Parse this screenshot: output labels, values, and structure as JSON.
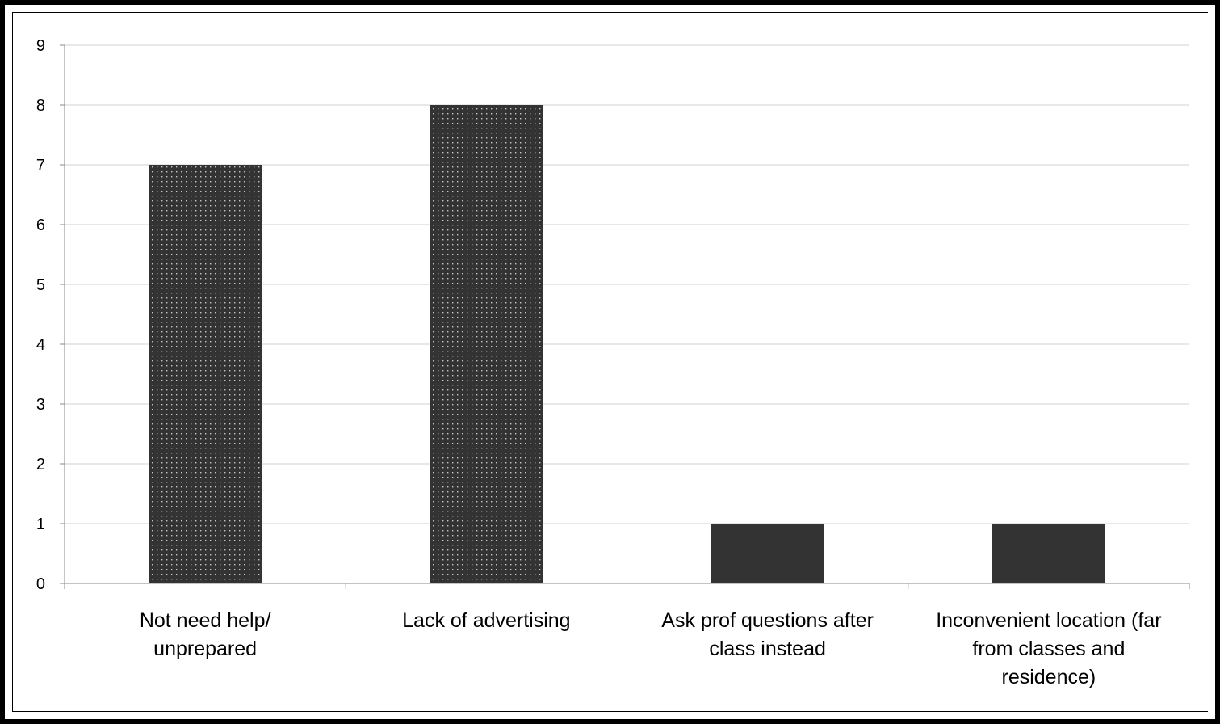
{
  "chart_data": {
    "type": "bar",
    "categories": [
      [
        "Not need help/",
        "unprepared"
      ],
      [
        "Lack of advertising"
      ],
      [
        "Ask prof questions after",
        "class instead"
      ],
      [
        "Inconvenient location (far",
        "from classes and",
        "residence)"
      ]
    ],
    "values": [
      7,
      8,
      1,
      1
    ],
    "bar_styles": [
      "dotted",
      "dotted",
      "solid",
      "solid"
    ],
    "ylim": [
      0,
      9
    ],
    "yticks": [
      "0",
      "1",
      "2",
      "3",
      "4",
      "5",
      "6",
      "7",
      "8",
      "9"
    ],
    "title": "",
    "xlabel": "",
    "ylabel": "",
    "grid": true,
    "legend": "none",
    "colors": {
      "bar": "#333333",
      "dot": "#c8c8c8",
      "grid": "#d0d0d0",
      "axis": "#888888"
    }
  }
}
